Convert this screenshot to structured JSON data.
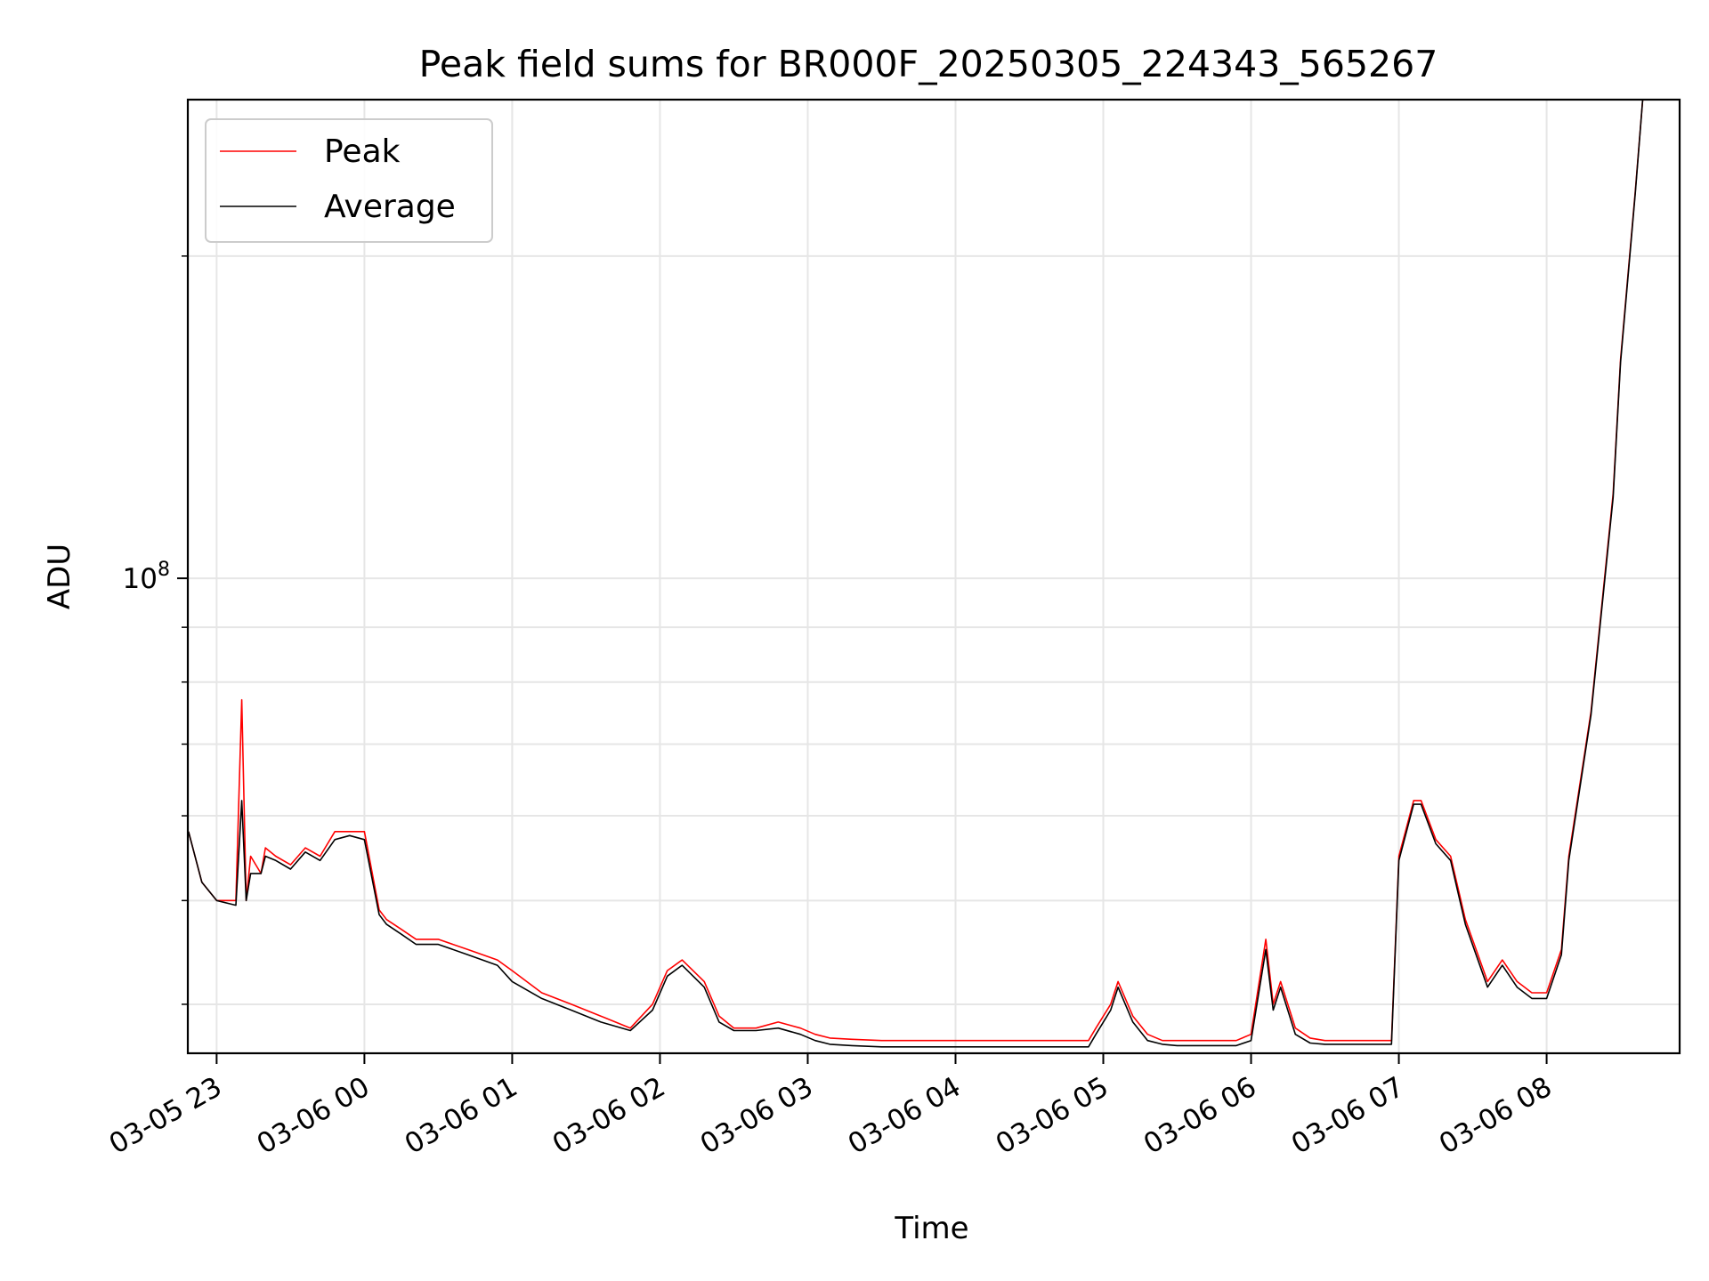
{
  "chart_data": {
    "type": "line",
    "title": "Peak field sums for BR000F_20250305_224343_565267",
    "xlabel": "Time",
    "ylabel": "ADU",
    "x_unit": "hours",
    "x_tick_labels": [
      "03-05 23",
      "03-06 00",
      "03-06 01",
      "03-06 02",
      "03-06 03",
      "03-06 04",
      "03-06 05",
      "03-06 06",
      "03-06 07",
      "03-06 08"
    ],
    "x_tick_values": [
      23,
      24,
      25,
      26,
      27,
      28,
      29,
      30,
      31,
      32
    ],
    "y_ticks": [
      {
        "value": 100000000,
        "base": "10",
        "exp": "8"
      }
    ],
    "xlim": [
      22.805,
      32.9
    ],
    "ylim": [
      36000000,
      280000000
    ],
    "y_scale": "log",
    "grid": true,
    "legend_position": "upper-left",
    "series": [
      {
        "name": "Peak",
        "color": "#ff0000",
        "x": [
          22.81,
          22.9,
          23.0,
          23.13,
          23.17,
          23.2,
          23.23,
          23.3,
          23.33,
          23.4,
          23.5,
          23.6,
          23.7,
          23.8,
          23.9,
          24.0,
          24.1,
          24.15,
          24.25,
          24.35,
          24.5,
          24.7,
          24.9,
          25.0,
          25.2,
          25.4,
          25.6,
          25.8,
          25.95,
          26.05,
          26.15,
          26.3,
          26.4,
          26.5,
          26.65,
          26.8,
          26.95,
          27.05,
          27.15,
          27.3,
          27.5,
          27.7,
          27.9,
          28.1,
          28.3,
          28.5,
          28.7,
          28.9,
          28.95,
          29.05,
          29.1,
          29.2,
          29.3,
          29.4,
          29.5,
          29.7,
          29.9,
          30.0,
          30.1,
          30.15,
          30.2,
          30.3,
          30.4,
          30.5,
          30.7,
          30.85,
          30.95,
          31.0,
          31.1,
          31.15,
          31.25,
          31.35,
          31.45,
          31.6,
          31.7,
          31.8,
          31.9,
          32.0,
          32.1,
          32.15,
          32.3,
          32.45,
          32.5,
          32.6,
          32.65
        ],
        "y": [
          58000000,
          52000000,
          50000000,
          50000000,
          77000000,
          50000000,
          55000000,
          53000000,
          56000000,
          55000000,
          54000000,
          56000000,
          55000000,
          58000000,
          58000000,
          58000000,
          49000000,
          48000000,
          47000000,
          46000000,
          46000000,
          45000000,
          44000000,
          43000000,
          41000000,
          40000000,
          39000000,
          38000000,
          40000000,
          43000000,
          44000000,
          42000000,
          39000000,
          38000000,
          38000000,
          38500000,
          38000000,
          37500000,
          37200000,
          37100000,
          37000000,
          37000000,
          37000000,
          37000000,
          37000000,
          37000000,
          37000000,
          37000000,
          38000000,
          40000000,
          42000000,
          39000000,
          37500000,
          37000000,
          37000000,
          37000000,
          37000000,
          37500000,
          46000000,
          40000000,
          42000000,
          38000000,
          37200000,
          37000000,
          37000000,
          37000000,
          37000000,
          55000000,
          62000000,
          62000000,
          57000000,
          55000000,
          48000000,
          42000000,
          44000000,
          42000000,
          41000000,
          41000000,
          45000000,
          55000000,
          75000000,
          120000000,
          160000000,
          230000000,
          280000000
        ]
      },
      {
        "name": "Average",
        "color": "#000000",
        "x": [
          22.81,
          22.9,
          23.0,
          23.13,
          23.17,
          23.2,
          23.23,
          23.3,
          23.33,
          23.4,
          23.5,
          23.6,
          23.7,
          23.8,
          23.9,
          24.0,
          24.1,
          24.15,
          24.25,
          24.35,
          24.5,
          24.7,
          24.9,
          25.0,
          25.2,
          25.4,
          25.6,
          25.8,
          25.95,
          26.05,
          26.15,
          26.3,
          26.4,
          26.5,
          26.65,
          26.8,
          26.95,
          27.05,
          27.15,
          27.3,
          27.5,
          27.7,
          27.9,
          28.1,
          28.3,
          28.5,
          28.7,
          28.9,
          28.95,
          29.05,
          29.1,
          29.2,
          29.3,
          29.4,
          29.5,
          29.7,
          29.9,
          30.0,
          30.1,
          30.15,
          30.2,
          30.3,
          30.4,
          30.5,
          30.7,
          30.85,
          30.95,
          31.0,
          31.1,
          31.15,
          31.25,
          31.35,
          31.45,
          31.6,
          31.7,
          31.8,
          31.9,
          32.0,
          32.1,
          32.15,
          32.3,
          32.45,
          32.5,
          32.6,
          32.65
        ],
        "y": [
          58000000,
          52000000,
          50000000,
          49500000,
          62000000,
          50000000,
          53000000,
          53000000,
          55000000,
          54500000,
          53500000,
          55500000,
          54500000,
          57000000,
          57500000,
          57000000,
          48500000,
          47500000,
          46500000,
          45500000,
          45500000,
          44500000,
          43500000,
          42000000,
          40500000,
          39500000,
          38500000,
          37800000,
          39500000,
          42500000,
          43500000,
          41500000,
          38500000,
          37800000,
          37800000,
          38000000,
          37500000,
          37000000,
          36700000,
          36600000,
          36500000,
          36500000,
          36500000,
          36500000,
          36500000,
          36500000,
          36500000,
          36500000,
          37500000,
          39500000,
          41500000,
          38500000,
          37000000,
          36700000,
          36600000,
          36600000,
          36600000,
          37000000,
          45000000,
          39500000,
          41500000,
          37500000,
          36800000,
          36700000,
          36700000,
          36700000,
          36700000,
          54500000,
          61500000,
          61500000,
          56500000,
          54500000,
          47500000,
          41500000,
          43500000,
          41500000,
          40500000,
          40500000,
          44500000,
          54500000,
          74500000,
          119000000,
          159000000,
          229000000,
          280000000
        ]
      }
    ]
  }
}
